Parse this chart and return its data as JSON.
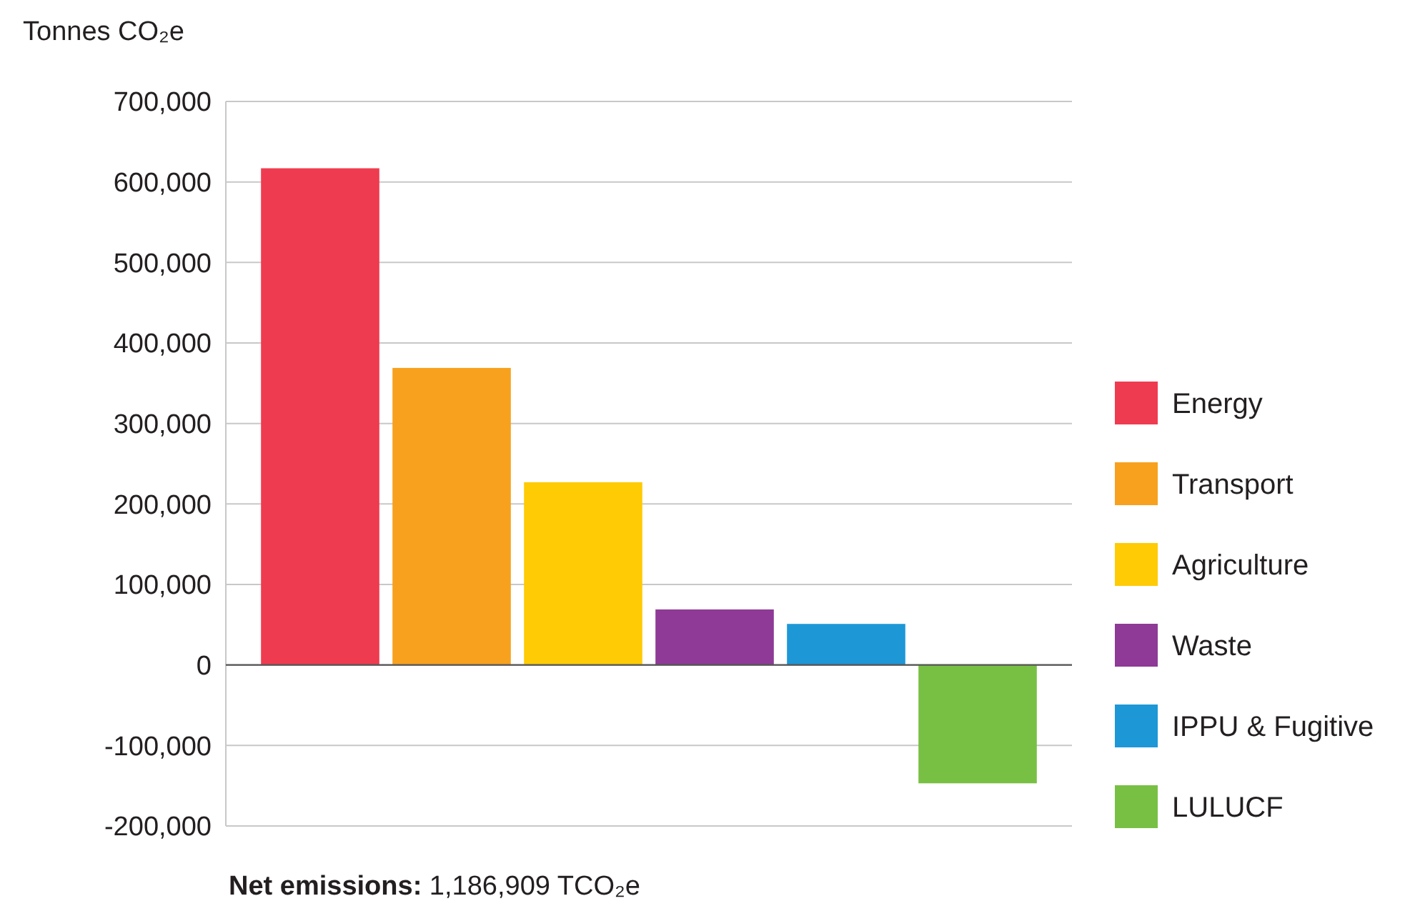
{
  "chart_data": {
    "type": "bar",
    "ylabel": "Tonnes CO₂e",
    "categories": [
      null,
      null,
      null,
      null,
      null,
      null
    ],
    "series": [
      {
        "name": "Energy",
        "color": "#ef3b4f",
        "values": [
          617000,
          null,
          null,
          null,
          null,
          null
        ]
      },
      {
        "name": "Transport",
        "color": "#f7a11f",
        "values": [
          null,
          369000,
          null,
          null,
          null,
          null
        ]
      },
      {
        "name": "Agriculture",
        "color": "#fecb05",
        "values": [
          null,
          null,
          227000,
          null,
          null,
          null
        ]
      },
      {
        "name": "Waste",
        "color": "#8e3a96",
        "values": [
          null,
          null,
          null,
          69000,
          null,
          null
        ]
      },
      {
        "name": "IPPU & Fugitive",
        "color": "#1d97d6",
        "values": [
          null,
          null,
          null,
          null,
          51000,
          null
        ]
      },
      {
        "name": "LULUCF",
        "color": "#78c043",
        "values": [
          null,
          null,
          null,
          null,
          null,
          -147000
        ]
      }
    ],
    "ylim": [
      -200000,
      700000
    ],
    "yticks": [
      {
        "value": -200000,
        "label": "-200,000"
      },
      {
        "value": -100000,
        "label": "-100,000"
      },
      0,
      {
        "value": 100000,
        "label": "100,000"
      },
      {
        "value": 200000,
        "label": "200,000"
      },
      {
        "value": 300000,
        "label": "300,000"
      },
      {
        "value": 400000,
        "label": "400,000"
      },
      {
        "value": 500000,
        "label": "500,000"
      },
      {
        "value": 600000,
        "label": "600,000"
      },
      {
        "value": 700000,
        "label": "700,000"
      }
    ],
    "grid": "y",
    "legend": "right",
    "tick_labels": "y",
    "annotations": [
      "Net emissions: 1,186,909 TCO₂e"
    ]
  }
}
